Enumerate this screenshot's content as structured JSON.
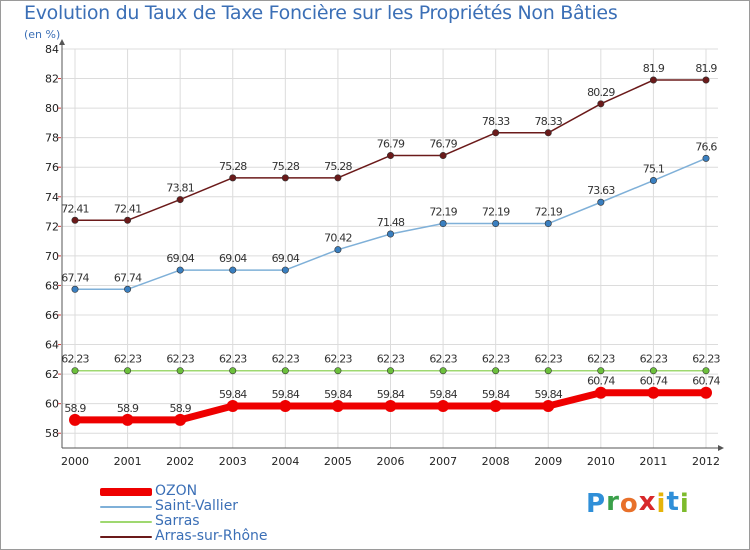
{
  "title": "Evolution du Taux de Taxe Foncière sur les Propriétés Non Bâties",
  "subtitle": "(en %)",
  "logo": {
    "letters": [
      "P",
      "r",
      "o",
      "x",
      "i",
      "t",
      "i"
    ],
    "colors": [
      "#2f8fd8",
      "#3aa04a",
      "#e8702a",
      "#d8282a",
      "#e6b40a",
      "#2f8fd8",
      "#7dbb2c"
    ]
  },
  "chart_data": {
    "type": "line",
    "x": [
      "2000",
      "2001",
      "2002",
      "2003",
      "2004",
      "2005",
      "2006",
      "2007",
      "2008",
      "2009",
      "2010",
      "2011",
      "2012"
    ],
    "ylim": [
      57,
      84
    ],
    "yticks": [
      58,
      60,
      62,
      64,
      66,
      68,
      70,
      72,
      74,
      76,
      78,
      80,
      82,
      84
    ],
    "grid": true,
    "legend_position": "bottom-left",
    "series": [
      {
        "name": "Arras-sur-Rhône",
        "color": "#6b1a1a",
        "marker": "#6b1a1a",
        "thick": false,
        "values": [
          72.41,
          72.41,
          73.81,
          75.28,
          75.28,
          75.28,
          76.79,
          76.79,
          78.33,
          78.33,
          80.29,
          81.9,
          81.9
        ],
        "labels": [
          "72.41",
          "72.41",
          "73.81",
          "75.28",
          "75.28",
          "75.28",
          "76.79",
          "76.79",
          "78.33",
          "78.33",
          "80.29",
          "81.9",
          "81.9"
        ]
      },
      {
        "name": "Saint-Vallier",
        "color": "#7fb0d8",
        "marker": "#3a7fc0",
        "thick": false,
        "values": [
          67.74,
          67.74,
          69.04,
          69.04,
          69.04,
          70.42,
          71.48,
          72.19,
          72.19,
          72.19,
          73.63,
          75.1,
          76.6
        ],
        "labels": [
          "67.74",
          "67.74",
          "69.04",
          "69.04",
          "69.04",
          "70.42",
          "71.48",
          "72.19",
          "72.19",
          "72.19",
          "73.63",
          "75.1",
          "76.6"
        ]
      },
      {
        "name": "Sarras",
        "color": "#9fd870",
        "marker": "#6cc03c",
        "thick": false,
        "values": [
          62.23,
          62.23,
          62.23,
          62.23,
          62.23,
          62.23,
          62.23,
          62.23,
          62.23,
          62.23,
          62.23,
          62.23,
          62.23
        ],
        "labels": [
          "62.23",
          "62.23",
          "62.23",
          "62.23",
          "62.23",
          "62.23",
          "62.23",
          "62.23",
          "62.23",
          "62.23",
          "62.23",
          "62.23",
          "62.23"
        ]
      },
      {
        "name": "OZON",
        "color": "#ee0000",
        "marker": "#ee0000",
        "thick": true,
        "values": [
          58.9,
          58.9,
          58.9,
          59.84,
          59.84,
          59.84,
          59.84,
          59.84,
          59.84,
          59.84,
          60.74,
          60.74,
          60.74
        ],
        "labels": [
          "58.9",
          "58.9",
          "58.9",
          "59.84",
          "59.84",
          "59.84",
          "59.84",
          "59.84",
          "59.84",
          "59.84",
          "60.74",
          "60.74",
          "60.74"
        ]
      }
    ],
    "legend_order": [
      "OZON",
      "Saint-Vallier",
      "Sarras",
      "Arras-sur-Rhône"
    ]
  }
}
